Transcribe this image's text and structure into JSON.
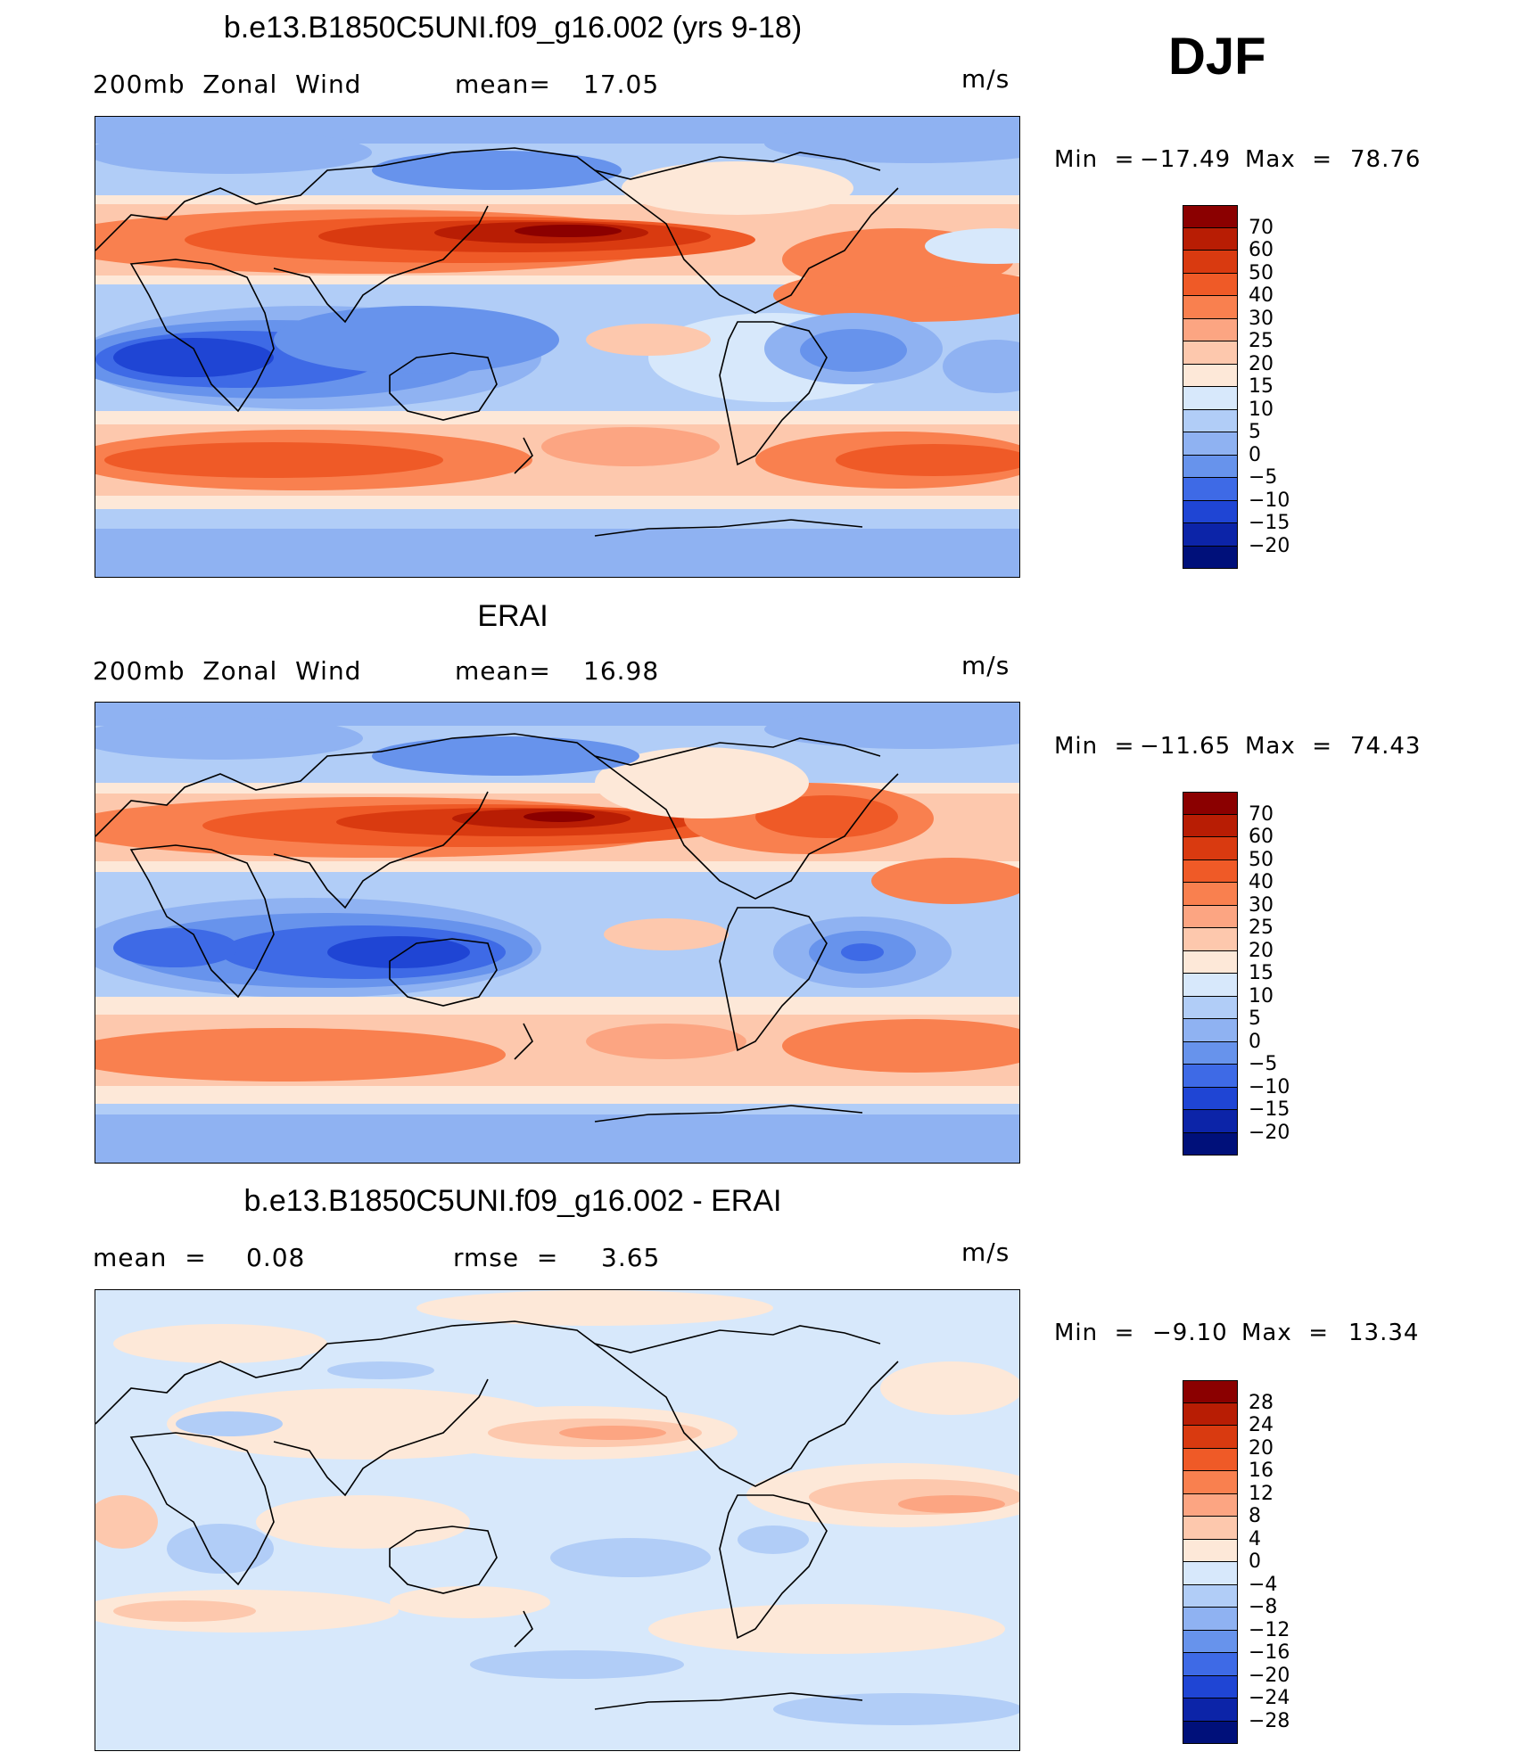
{
  "season": "DJF",
  "units_label": "m/s",
  "panels": [
    {
      "title": "b.e13.B1850C5UNI.f09_g16.002 (yrs 9-18)",
      "left_label": "200mb  Zonal  Wind",
      "stat1_label": "mean=",
      "stat1_value": "17.05",
      "stat2_label": "",
      "stat2_value": "",
      "units": "m/s",
      "min_label": "Min  =",
      "min_value": "−17.49",
      "max_label": "Max  =",
      "max_value": "78.76"
    },
    {
      "title": "ERAI",
      "left_label": "200mb  Zonal  Wind",
      "stat1_label": "mean=",
      "stat1_value": "16.98",
      "stat2_label": "",
      "stat2_value": "",
      "units": "m/s",
      "min_label": "Min  =",
      "min_value": "−11.65",
      "max_label": "Max  =",
      "max_value": "74.43"
    },
    {
      "title": "b.e13.B1850C5UNI.f09_g16.002 - ERAI",
      "left_label": "mean  =",
      "stat1_label": "0.08",
      "stat1_value": "",
      "stat2_label": "rmse  =",
      "stat2_value": "3.65",
      "units": "m/s",
      "min_label": "Min  =",
      "min_value": "−9.10",
      "max_label": "Max  =",
      "max_value": "13.34"
    }
  ],
  "colorbar_field": {
    "labels": [
      "70",
      "60",
      "50",
      "40",
      "30",
      "25",
      "20",
      "15",
      "10",
      "5",
      "0",
      "−5",
      "−10",
      "−15",
      "−20"
    ],
    "colors": [
      "#8b0000",
      "#b81d04",
      "#d93a10",
      "#ef5a27",
      "#f9804f",
      "#fca582",
      "#fdc8ad",
      "#fde8d8",
      "#d7e8fb",
      "#b1cdf7",
      "#8fb2f2",
      "#6793ec",
      "#3e6ae6",
      "#1f45d4",
      "#0c24a8",
      "#00107a"
    ]
  },
  "colorbar_diff": {
    "labels": [
      "28",
      "24",
      "20",
      "16",
      "12",
      "8",
      "4",
      "0",
      "−4",
      "−8",
      "−12",
      "−16",
      "−20",
      "−24",
      "−28"
    ],
    "colors": [
      "#8b0000",
      "#b81d04",
      "#d93a10",
      "#ef5a27",
      "#f9804f",
      "#fca582",
      "#fdc8ad",
      "#fde8d8",
      "#d7e8fb",
      "#b1cdf7",
      "#8fb2f2",
      "#6793ec",
      "#3e6ae6",
      "#1f45d4",
      "#0c24a8",
      "#00107a"
    ]
  }
}
